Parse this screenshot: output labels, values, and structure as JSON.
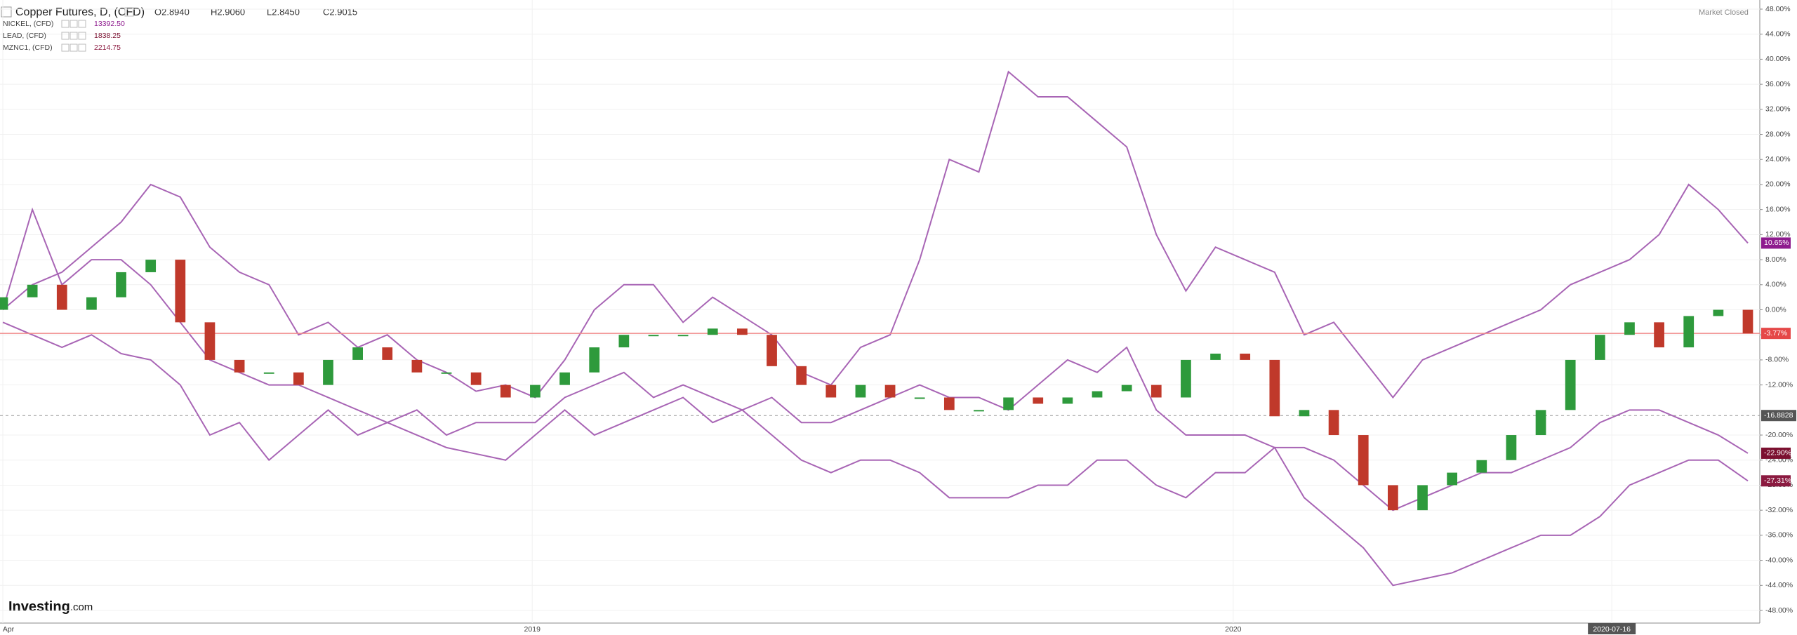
{
  "chart_data": {
    "type": "candlestick",
    "title": "Copper Futures, D, (CFD)",
    "quote": [
      "O2.8940",
      "H2.9060",
      "L2.8450",
      "C2.9015"
    ],
    "status": "Market Closed",
    "brand": "Investing",
    "brand_suffix": ".com",
    "xlim": [
      0,
      59
    ],
    "xticks": [
      {
        "value": 0,
        "label": "Apr"
      },
      {
        "value": 17.9,
        "label": "2019"
      },
      {
        "value": 41.6,
        "label": "2020"
      },
      {
        "value": 54.4,
        "label": "2020-07-16"
      }
    ],
    "ylim": [
      -48,
      48
    ],
    "yticks": [
      {
        "value": 48,
        "label": "48.00%"
      },
      {
        "value": 44,
        "label": "44.00%"
      },
      {
        "value": 40,
        "label": "40.00%"
      },
      {
        "value": 36,
        "label": "36.00%"
      },
      {
        "value": 32,
        "label": "32.00%"
      },
      {
        "value": 28,
        "label": "28.00%"
      },
      {
        "value": 24,
        "label": "24.00%"
      },
      {
        "value": 20,
        "label": "20.00%"
      },
      {
        "value": 16,
        "label": "16.00%"
      },
      {
        "value": 12,
        "label": "12.00%"
      },
      {
        "value": 8,
        "label": "8.00%"
      },
      {
        "value": 4,
        "label": "4.00%"
      },
      {
        "value": 0,
        "label": "0.00%"
      },
      {
        "value": -4,
        "label": "-4.00%"
      },
      {
        "value": -8,
        "label": "-8.00%"
      },
      {
        "value": -12,
        "label": "-12.00%"
      },
      {
        "value": -20,
        "label": "-20.00%"
      },
      {
        "value": -24,
        "label": "-24.00%"
      },
      {
        "value": -28,
        "label": "-28.00%"
      },
      {
        "value": -32,
        "label": "-32.00%"
      },
      {
        "value": -36,
        "label": "-36.00%"
      },
      {
        "value": -40,
        "label": "-40.00%"
      },
      {
        "value": -44,
        "label": "-44.00%"
      },
      {
        "value": -48,
        "label": "-48.00%"
      }
    ],
    "grid": true,
    "crosshair": -16.8828,
    "candles": {
      "up_color": "#2e9a3c",
      "down_color": "#c0392b",
      "line_color": "#f08a8a",
      "label_color": "#e54848",
      "last_label": "-3.77%",
      "open": [
        0,
        2,
        4,
        0,
        2,
        6,
        8,
        -2,
        -8,
        -10,
        -10,
        -12,
        -8,
        -6,
        -8,
        -10,
        -10,
        -12,
        -14,
        -12,
        -10,
        -6,
        -4,
        -4,
        -4,
        -3,
        -4,
        -9,
        -12,
        -14,
        -12,
        -14,
        -14,
        -16,
        -16,
        -14,
        -15,
        -14,
        -13,
        -12,
        -14,
        -8,
        -7,
        -8,
        -17,
        -16,
        -20,
        -28,
        -32,
        -28,
        -26,
        -24,
        -20,
        -16,
        -8,
        -4,
        -2,
        -6,
        -1,
        0
      ],
      "close": [
        2,
        4,
        0,
        2,
        6,
        8,
        -2,
        -8,
        -10,
        -10,
        -12,
        -8,
        -6,
        -8,
        -10,
        -10,
        -12,
        -14,
        -12,
        -10,
        -6,
        -4,
        -4,
        -4,
        -3,
        -4,
        -9,
        -12,
        -14,
        -12,
        -14,
        -14,
        -16,
        -16,
        -14,
        -15,
        -14,
        -13,
        -12,
        -14,
        -8,
        -7,
        -8,
        -17,
        -16,
        -20,
        -28,
        -32,
        -28,
        -26,
        -24,
        -20,
        -16,
        -8,
        -4,
        -2,
        -6,
        -1,
        0,
        -3.77
      ]
    },
    "series": [
      {
        "name": "NICKEL, (CFD)",
        "price": "13392.50",
        "color": "#a865b5",
        "label_color": "#8e1b8e",
        "last_label": "10.65%",
        "values": [
          0,
          4,
          6,
          10,
          14,
          20,
          18,
          10,
          6,
          4,
          -4,
          -2,
          -6,
          -4,
          -8,
          -10,
          -13,
          -12,
          -14,
          -8,
          0,
          4,
          4,
          -2,
          2,
          -1,
          -4,
          -10,
          -12,
          -6,
          -4,
          8,
          24,
          22,
          38,
          34,
          34,
          30,
          26,
          12,
          3,
          10,
          8,
          6,
          -4,
          -2,
          -8,
          -14,
          -8,
          -6,
          -4,
          -2,
          0,
          4,
          6,
          8,
          12,
          20,
          16,
          10.65
        ]
      },
      {
        "name": "LEAD, (CFD)",
        "price": "1838.25",
        "color": "#a865b5",
        "label_color": "#7b1030",
        "last_label": "-22.90%",
        "values": [
          0,
          16,
          4,
          8,
          8,
          4,
          -2,
          -8,
          -10,
          -12,
          -12,
          -14,
          -16,
          -18,
          -16,
          -20,
          -18,
          -18,
          -18,
          -14,
          -12,
          -10,
          -14,
          -12,
          -14,
          -16,
          -14,
          -18,
          -18,
          -16,
          -14,
          -12,
          -14,
          -14,
          -16,
          -12,
          -8,
          -10,
          -6,
          -16,
          -20,
          -20,
          -20,
          -22,
          -22,
          -24,
          -28,
          -32,
          -30,
          -28,
          -26,
          -26,
          -24,
          -22,
          -18,
          -16,
          -16,
          -18,
          -20,
          -22.9
        ]
      },
      {
        "name": "MZNC1, (CFD)",
        "price": "2214.75",
        "color": "#a865b5",
        "label_color": "#8b1a40",
        "last_label": "-27.31%",
        "values": [
          -2,
          -4,
          -6,
          -4,
          -7,
          -8,
          -12,
          -20,
          -18,
          -24,
          -20,
          -16,
          -20,
          -18,
          -20,
          -22,
          -23,
          -24,
          -20,
          -16,
          -20,
          -18,
          -16,
          -14,
          -18,
          -16,
          -20,
          -24,
          -26,
          -24,
          -24,
          -26,
          -30,
          -30,
          -30,
          -28,
          -28,
          -24,
          -24,
          -28,
          -30,
          -26,
          -26,
          -22,
          -30,
          -34,
          -38,
          -44,
          -43,
          -42,
          -40,
          -38,
          -36,
          -36,
          -33,
          -28,
          -26,
          -24,
          -24,
          -27.31
        ]
      }
    ]
  }
}
